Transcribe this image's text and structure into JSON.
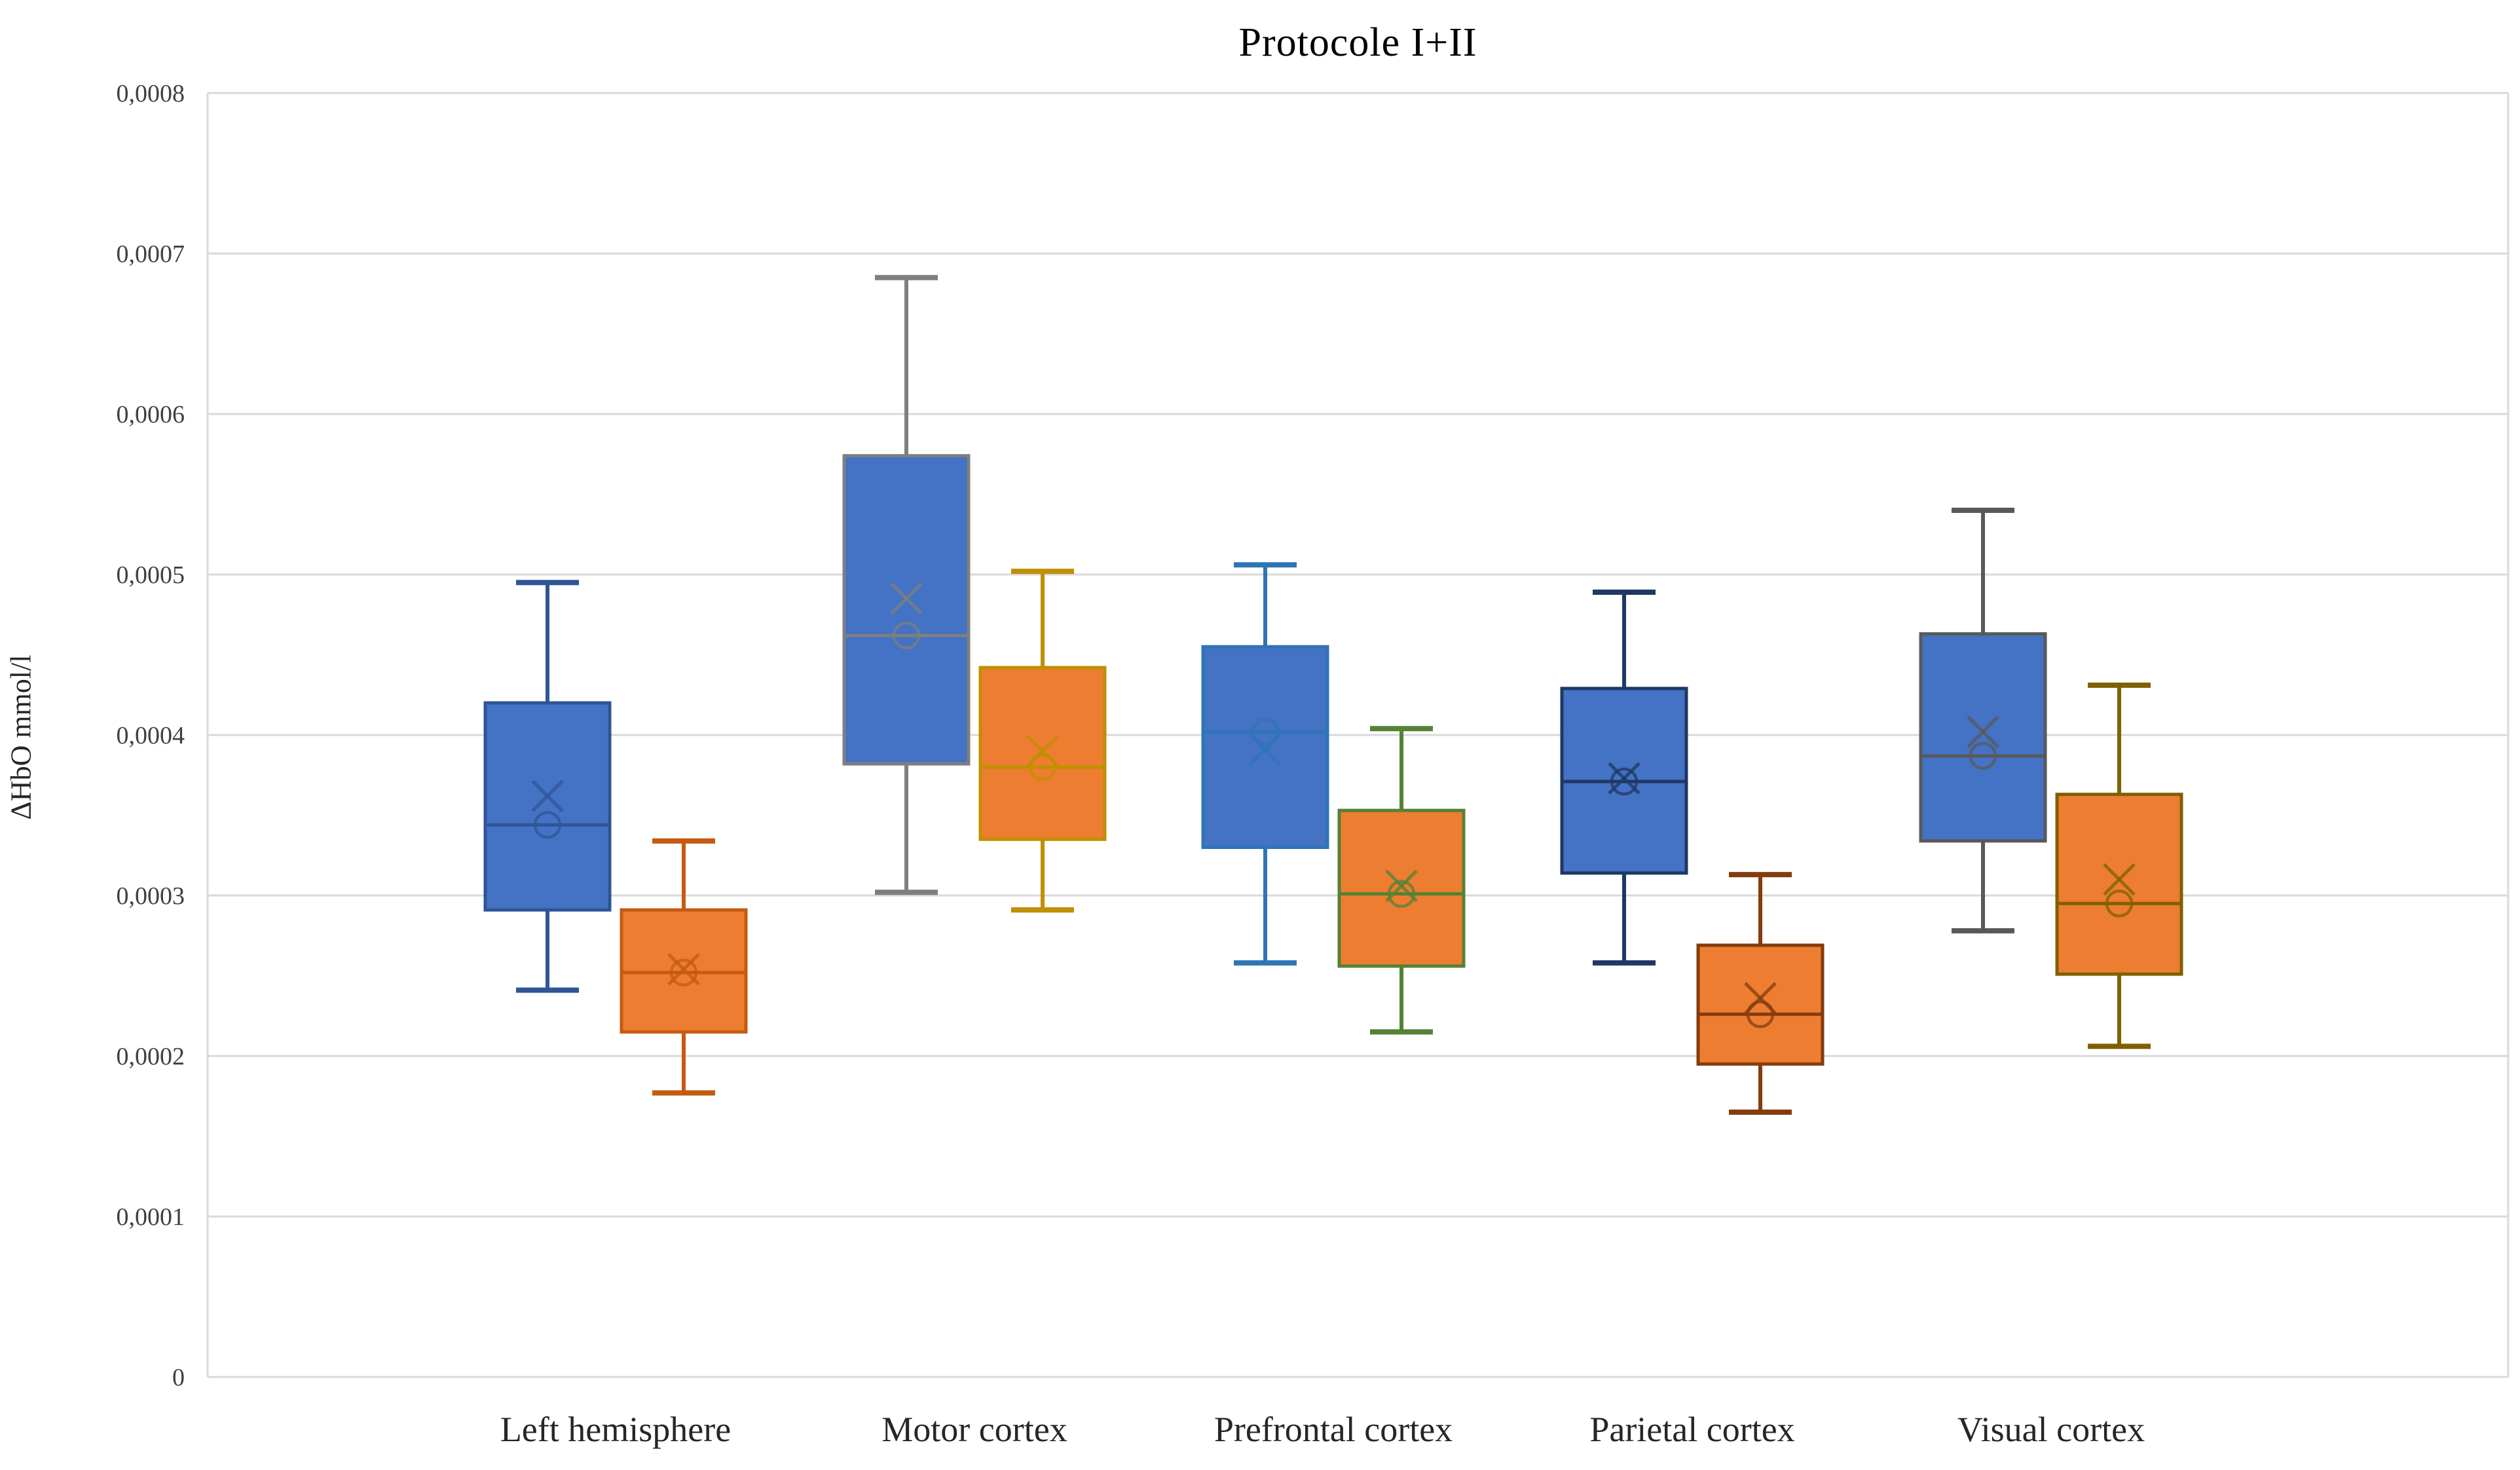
{
  "title": "Protocole I+II",
  "y_axis_label": "ΔHbO mmol/l",
  "chart_data": {
    "type": "boxplot",
    "title": "Protocole I+II",
    "ylabel": "ΔHbO mmol/l",
    "xlabel": "",
    "ylim": [
      0,
      0.0008
    ],
    "ytick_interval": 0.0001,
    "ytick_labels": [
      "0",
      "0,0001",
      "0,0002",
      "0,0003",
      "0,0004",
      "0,0005",
      "0,0006",
      "0,0007",
      "0,0008"
    ],
    "decimal_separator": ",",
    "grid": true,
    "gridline_color": "#D9D9D9",
    "plot_border_color": "#D9D9D9",
    "tick_label_color": "#404040",
    "category_label_color": "#262626",
    "legend": "none",
    "markers": {
      "mean": "x-cross",
      "median_point": "open-circle"
    },
    "categories": [
      "Left hemisphere",
      "Motor cortex",
      "Prefrontal cortex",
      "Parietal cortex",
      "Visual cortex"
    ],
    "series": [
      {
        "name": "blue",
        "fill": "#4472C4",
        "boxes": [
          {
            "category": "Left hemisphere",
            "border": "#2F5597",
            "min": 0.000241,
            "q1": 0.000291,
            "median": 0.000344,
            "mean": 0.000362,
            "q3": 0.00042,
            "max": 0.000495
          },
          {
            "category": "Motor cortex",
            "border": "#7F7F7F",
            "min": 0.000302,
            "q1": 0.000382,
            "median": 0.000462,
            "mean": 0.000485,
            "q3": 0.000574,
            "max": 0.000685
          },
          {
            "category": "Prefrontal cortex",
            "border": "#2E75B6",
            "min": 0.000258,
            "q1": 0.00033,
            "median": 0.000402,
            "mean": 0.000391,
            "q3": 0.000455,
            "max": 0.000506
          },
          {
            "category": "Parietal cortex",
            "border": "#1F3864",
            "min": 0.000258,
            "q1": 0.000314,
            "median": 0.000371,
            "mean": 0.000373,
            "q3": 0.000429,
            "max": 0.000489
          },
          {
            "category": "Visual cortex",
            "border": "#595959",
            "min": 0.000278,
            "q1": 0.000334,
            "median": 0.000387,
            "mean": 0.000402,
            "q3": 0.000463,
            "max": 0.00054
          }
        ]
      },
      {
        "name": "orange",
        "fill": "#ED7D31",
        "boxes": [
          {
            "category": "Left hemisphere",
            "border": "#C55A11",
            "min": 0.000177,
            "q1": 0.000215,
            "median": 0.000252,
            "mean": 0.000254,
            "q3": 0.000291,
            "max": 0.000334
          },
          {
            "category": "Motor cortex",
            "border": "#BF9000",
            "min": 0.000291,
            "q1": 0.000335,
            "median": 0.00038,
            "mean": 0.00039,
            "q3": 0.000442,
            "max": 0.000502
          },
          {
            "category": "Prefrontal cortex",
            "border": "#548235",
            "min": 0.000215,
            "q1": 0.000256,
            "median": 0.000301,
            "mean": 0.000306,
            "q3": 0.000353,
            "max": 0.000404
          },
          {
            "category": "Parietal cortex",
            "border": "#843C0C",
            "min": 0.000165,
            "q1": 0.000195,
            "median": 0.000226,
            "mean": 0.000236,
            "q3": 0.000269,
            "max": 0.000313
          },
          {
            "category": "Visual cortex",
            "border": "#7F6000",
            "min": 0.000206,
            "q1": 0.000251,
            "median": 0.000295,
            "mean": 0.00031,
            "q3": 0.000363,
            "max": 0.000431
          }
        ]
      }
    ]
  }
}
